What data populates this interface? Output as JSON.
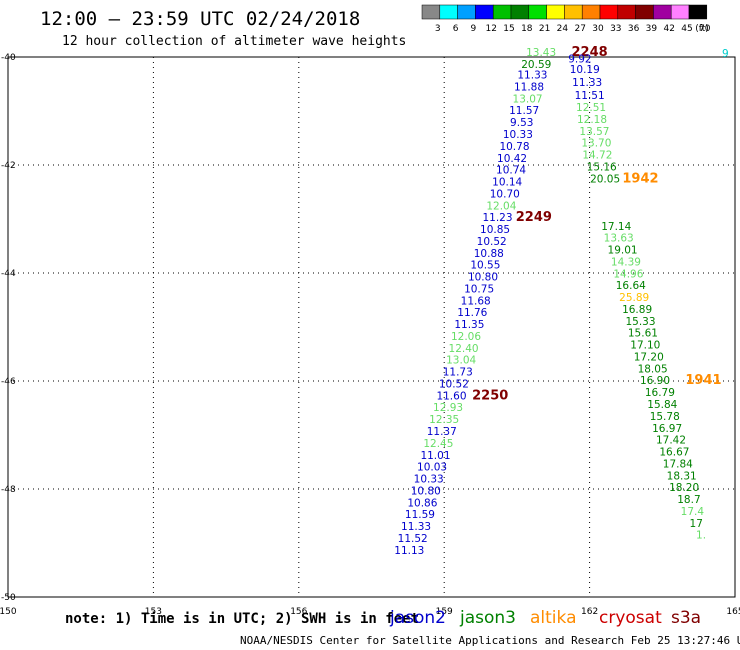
{
  "title": "12:00 – 23:59 UTC 02/24/2018",
  "subtitle": "12 hour collection of altimeter wave heights",
  "colorbar": {
    "labels": [
      "3",
      "6",
      "9",
      "12",
      "15",
      "18",
      "21",
      "24",
      "27",
      "30",
      "33",
      "36",
      "39",
      "42",
      "45",
      "70"
    ],
    "colors": [
      "#888888",
      "#00ffff",
      "#00a0ff",
      "#0000ff",
      "#00c000",
      "#008000",
      "#00e000",
      "#ffff00",
      "#ffc000",
      "#ff8000",
      "#ff0000",
      "#c00000",
      "#800000",
      "#a000a0",
      "#ff80ff",
      "#000000"
    ],
    "unit": "(ft)"
  },
  "footer": {
    "note": "note:  1) Time is in UTC; 2) SWH is in feet",
    "credit": "NOAA/NESDIS Center for Satellite Applications and Research   Feb 25 13:27:46 UTC 2018"
  },
  "legend": [
    {
      "name": "jason2",
      "color": "#0000cc"
    },
    {
      "name": "jason3",
      "color": "#008000"
    },
    {
      "name": "altika",
      "color": "#ff8c00"
    },
    {
      "name": "cryosat",
      "color": "#cc0000"
    },
    {
      "name": "s3a",
      "color": "#800000"
    }
  ],
  "chart_data": {
    "type": "scatter",
    "title": "12:00 – 23:59 UTC 02/24/2018",
    "subtitle": "12 hour collection of altimeter wave heights",
    "x_ticks": [
      "150",
      "153",
      "156",
      "159",
      "162",
      "165"
    ],
    "y_ticks": [
      "-40",
      "-42",
      "-44",
      "-46",
      "-48",
      "-50"
    ],
    "xlim": [
      150,
      165
    ],
    "ylim": [
      -50,
      -40
    ],
    "grid": true,
    "labels": [
      {
        "text": "13.43",
        "lon": 161.0,
        "lat": -39.98,
        "color": "#66dd66"
      },
      {
        "text": "2248",
        "lon": 162.0,
        "lat": -39.98,
        "color": "#800000",
        "bold": true
      },
      {
        "text": "20.59",
        "lon": 160.9,
        "lat": -40.2,
        "color": "#008000"
      },
      {
        "text": "9.92",
        "lon": 161.8,
        "lat": -40.1,
        "color": "#0000cc"
      },
      {
        "text": "11.33",
        "lon": 160.82,
        "lat": -40.4,
        "color": "#0000cc"
      },
      {
        "text": "10.19",
        "lon": 161.9,
        "lat": -40.3,
        "color": "#0000cc"
      },
      {
        "text": "11.88",
        "lon": 160.75,
        "lat": -40.62,
        "color": "#0000cc"
      },
      {
        "text": "11.33",
        "lon": 161.95,
        "lat": -40.54,
        "color": "#0000cc"
      },
      {
        "text": "13.07",
        "lon": 160.72,
        "lat": -40.84,
        "color": "#66dd66"
      },
      {
        "text": "11.51",
        "lon": 162.0,
        "lat": -40.78,
        "color": "#0000cc"
      },
      {
        "text": "11.57",
        "lon": 160.65,
        "lat": -41.06,
        "color": "#0000cc"
      },
      {
        "text": "12.51",
        "lon": 162.03,
        "lat": -41.0,
        "color": "#66dd66"
      },
      {
        "text": "9.53",
        "lon": 160.6,
        "lat": -41.28,
        "color": "#0000cc"
      },
      {
        "text": "12.18",
        "lon": 162.05,
        "lat": -41.22,
        "color": "#66dd66"
      },
      {
        "text": "10.33",
        "lon": 160.52,
        "lat": -41.5,
        "color": "#0000cc"
      },
      {
        "text": "13.57",
        "lon": 162.1,
        "lat": -41.44,
        "color": "#66dd66"
      },
      {
        "text": "10.78",
        "lon": 160.45,
        "lat": -41.72,
        "color": "#0000cc"
      },
      {
        "text": "13.70",
        "lon": 162.14,
        "lat": -41.66,
        "color": "#66dd66"
      },
      {
        "text": "10.42",
        "lon": 160.4,
        "lat": -41.94,
        "color": "#0000cc"
      },
      {
        "text": "14.72",
        "lon": 162.16,
        "lat": -41.88,
        "color": "#66dd66"
      },
      {
        "text": "10.74",
        "lon": 160.38,
        "lat": -42.16,
        "color": "#0000cc"
      },
      {
        "text": "15.16",
        "lon": 162.25,
        "lat": -42.1,
        "color": "#008000"
      },
      {
        "text": "10.14",
        "lon": 160.3,
        "lat": -42.38,
        "color": "#0000cc"
      },
      {
        "text": "20.05",
        "lon": 162.32,
        "lat": -42.32,
        "color": "#008000"
      },
      {
        "text": "1942",
        "lon": 163.05,
        "lat": -42.32,
        "color": "#ff8c00",
        "bold": true
      },
      {
        "text": "10.70",
        "lon": 160.25,
        "lat": -42.6,
        "color": "#0000cc"
      },
      {
        "text": "12.04",
        "lon": 160.18,
        "lat": -42.82,
        "color": "#66dd66"
      },
      {
        "text": "11.23",
        "lon": 160.1,
        "lat": -43.04,
        "color": "#0000cc"
      },
      {
        "text": "2249",
        "lon": 160.85,
        "lat": -43.04,
        "color": "#800000",
        "bold": true
      },
      {
        "text": "10.85",
        "lon": 160.05,
        "lat": -43.26,
        "color": "#0000cc"
      },
      {
        "text": "17.14",
        "lon": 162.55,
        "lat": -43.2,
        "color": "#008000"
      },
      {
        "text": "10.52",
        "lon": 159.98,
        "lat": -43.48,
        "color": "#0000cc"
      },
      {
        "text": "13.63",
        "lon": 162.6,
        "lat": -43.42,
        "color": "#66dd66"
      },
      {
        "text": "10.88",
        "lon": 159.92,
        "lat": -43.7,
        "color": "#0000cc"
      },
      {
        "text": "19.01",
        "lon": 162.68,
        "lat": -43.64,
        "color": "#008000"
      },
      {
        "text": "10.55",
        "lon": 159.85,
        "lat": -43.92,
        "color": "#0000cc"
      },
      {
        "text": "14.39",
        "lon": 162.75,
        "lat": -43.86,
        "color": "#66dd66"
      },
      {
        "text": "10.80",
        "lon": 159.8,
        "lat": -44.14,
        "color": "#0000cc"
      },
      {
        "text": "14.96",
        "lon": 162.8,
        "lat": -44.08,
        "color": "#66dd66"
      },
      {
        "text": "10.75",
        "lon": 159.72,
        "lat": -44.36,
        "color": "#0000cc"
      },
      {
        "text": "16.64",
        "lon": 162.85,
        "lat": -44.3,
        "color": "#008000"
      },
      {
        "text": "11.68",
        "lon": 159.65,
        "lat": -44.58,
        "color": "#0000cc"
      },
      {
        "text": "25.89",
        "lon": 162.92,
        "lat": -44.52,
        "color": "#ffc000"
      },
      {
        "text": "11.76",
        "lon": 159.58,
        "lat": -44.8,
        "color": "#0000cc"
      },
      {
        "text": "16.89",
        "lon": 162.98,
        "lat": -44.74,
        "color": "#008000"
      },
      {
        "text": "11.35",
        "lon": 159.52,
        "lat": -45.02,
        "color": "#0000cc"
      },
      {
        "text": "15.33",
        "lon": 163.05,
        "lat": -44.96,
        "color": "#008000"
      },
      {
        "text": "12.06",
        "lon": 159.45,
        "lat": -45.24,
        "color": "#66dd66"
      },
      {
        "text": "15.61",
        "lon": 163.1,
        "lat": -45.18,
        "color": "#008000"
      },
      {
        "text": "12.40",
        "lon": 159.4,
        "lat": -45.46,
        "color": "#66dd66"
      },
      {
        "text": "17.10",
        "lon": 163.15,
        "lat": -45.4,
        "color": "#008000"
      },
      {
        "text": "13.04",
        "lon": 159.35,
        "lat": -45.68,
        "color": "#66dd66"
      },
      {
        "text": "17.20",
        "lon": 163.22,
        "lat": -45.62,
        "color": "#008000"
      },
      {
        "text": "11.73",
        "lon": 159.28,
        "lat": -45.9,
        "color": "#0000cc"
      },
      {
        "text": "18.05",
        "lon": 163.3,
        "lat": -45.84,
        "color": "#008000"
      },
      {
        "text": "10.52",
        "lon": 159.2,
        "lat": -46.12,
        "color": "#0000cc"
      },
      {
        "text": "16.90",
        "lon": 163.35,
        "lat": -46.06,
        "color": "#008000"
      },
      {
        "text": "1941",
        "lon": 164.35,
        "lat": -46.06,
        "color": "#ff8c00",
        "bold": true
      },
      {
        "text": "11.60",
        "lon": 159.15,
        "lat": -46.34,
        "color": "#0000cc"
      },
      {
        "text": "2250",
        "lon": 159.95,
        "lat": -46.34,
        "color": "#800000",
        "bold": true
      },
      {
        "text": "16.79",
        "lon": 163.45,
        "lat": -46.28,
        "color": "#008000"
      },
      {
        "text": "12.93",
        "lon": 159.08,
        "lat": -46.56,
        "color": "#66dd66"
      },
      {
        "text": "15.84",
        "lon": 163.5,
        "lat": -46.5,
        "color": "#008000"
      },
      {
        "text": "12.35",
        "lon": 159.0,
        "lat": -46.78,
        "color": "#66dd66"
      },
      {
        "text": "15.78",
        "lon": 163.55,
        "lat": -46.72,
        "color": "#008000"
      },
      {
        "text": "11.37",
        "lon": 158.95,
        "lat": -47.0,
        "color": "#0000cc"
      },
      {
        "text": "16.97",
        "lon": 163.6,
        "lat": -46.94,
        "color": "#008000"
      },
      {
        "text": "12.45",
        "lon": 158.88,
        "lat": -47.22,
        "color": "#66dd66"
      },
      {
        "text": "17.42",
        "lon": 163.68,
        "lat": -47.16,
        "color": "#008000"
      },
      {
        "text": "11.01",
        "lon": 158.82,
        "lat": -47.44,
        "color": "#0000cc"
      },
      {
        "text": "16.67",
        "lon": 163.75,
        "lat": -47.38,
        "color": "#008000"
      },
      {
        "text": "10.03",
        "lon": 158.75,
        "lat": -47.66,
        "color": "#0000cc"
      },
      {
        "text": "17.84",
        "lon": 163.82,
        "lat": -47.6,
        "color": "#008000"
      },
      {
        "text": "10.33",
        "lon": 158.68,
        "lat": -47.88,
        "color": "#0000cc"
      },
      {
        "text": "18.31",
        "lon": 163.9,
        "lat": -47.82,
        "color": "#008000"
      },
      {
        "text": "10.80",
        "lon": 158.62,
        "lat": -48.1,
        "color": "#0000cc"
      },
      {
        "text": "18.20",
        "lon": 163.95,
        "lat": -48.04,
        "color": "#008000"
      },
      {
        "text": "10.86",
        "lon": 158.55,
        "lat": -48.32,
        "color": "#0000cc"
      },
      {
        "text": "18.7",
        "lon": 164.05,
        "lat": -48.26,
        "color": "#008000"
      },
      {
        "text": "11.59",
        "lon": 158.5,
        "lat": -48.54,
        "color": "#0000cc"
      },
      {
        "text": "17.4",
        "lon": 164.12,
        "lat": -48.48,
        "color": "#66dd66"
      },
      {
        "text": "11.33",
        "lon": 158.42,
        "lat": -48.76,
        "color": "#0000cc"
      },
      {
        "text": "17",
        "lon": 164.2,
        "lat": -48.7,
        "color": "#008000"
      },
      {
        "text": "11.52",
        "lon": 158.35,
        "lat": -48.98,
        "color": "#0000cc"
      },
      {
        "text": "1.",
        "lon": 164.3,
        "lat": -48.92,
        "color": "#66dd66"
      },
      {
        "text": "11.13",
        "lon": 158.28,
        "lat": -49.2,
        "color": "#0000cc"
      },
      {
        "text": "9",
        "lon": 164.8,
        "lat": -40.0,
        "color": "#00cccc"
      }
    ]
  }
}
